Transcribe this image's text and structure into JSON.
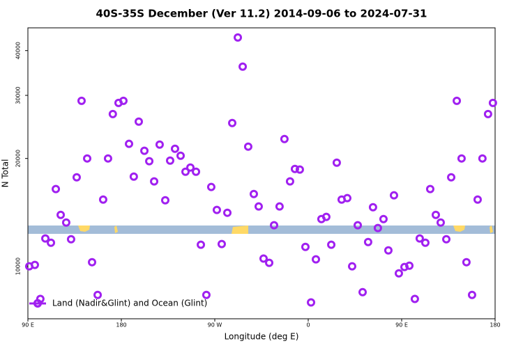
{
  "chart_data": {
    "type": "scatter",
    "title": "40S-35S December (Ver 11.2)   2014-09-06 to 2024-07-31",
    "xlabel": "Longitude (deg E)",
    "ylabel": "N Total",
    "log_y": true,
    "xlim": [
      90,
      540
    ],
    "ylim": [
      7140,
      46300
    ],
    "xticks": [
      {
        "value": 90,
        "label": "90 E"
      },
      180,
      {
        "value": 270,
        "label": "90 W"
      },
      {
        "value": 360,
        "label": "0"
      },
      {
        "value": 450,
        "label": "90 E"
      },
      {
        "value": 540,
        "label": "180"
      }
    ],
    "yticks": [
      10000,
      20000,
      30000,
      40000
    ],
    "legend": "bottom-left",
    "x": [
      91.3,
      96.7,
      99.4,
      102,
      106.8,
      112.2,
      116.9,
      121.6,
      126.9,
      131.6,
      137,
      141.7,
      147.1,
      151.8,
      157.2,
      162.5,
      167.2,
      171.8,
      177.3,
      182,
      187.4,
      192,
      196.8,
      202.2,
      206.9,
      211.6,
      216.9,
      222.3,
      227,
      231.7,
      237.1,
      241.8,
      246.5,
      251.9,
      256.6,
      261.9,
      266.6,
      272,
      276.7,
      282.1,
      286.8,
      292.2,
      296.9,
      302.2,
      307.6,
      312.3,
      317,
      322.4,
      327.1,
      332.4,
      337.1,
      342.5,
      347.2,
      351.9,
      357.3,
      362.7,
      367.4,
      372.7,
      377.4,
      382.2,
      387.5,
      392.2,
      397.6,
      402.3,
      407.7,
      412.4,
      417.7,
      422.4,
      427.1,
      432.5,
      437.2,
      442.6,
      447.3,
      452.7,
      457.4,
      462.7,
      467.4,
      472.8,
      477.5,
      482.9,
      487.6,
      493,
      497.7,
      503.1,
      507.7,
      512.4,
      517.8,
      523.2,
      527.8,
      533.2,
      537.9
    ],
    "series": [
      {
        "name": "Land (Nadir&Glint) and Ocean (Glint)",
        "color": "#a020f0",
        "values": [
          10000,
          10090,
          7890,
          8110,
          11960,
          11640,
          16430,
          13920,
          13250,
          11900,
          17720,
          28970,
          20000,
          10270,
          8320,
          15360,
          20000,
          26610,
          28580,
          28970,
          21970,
          17800,
          25340,
          21010,
          19650,
          17260,
          21870,
          15290,
          19730,
          21290,
          20360,
          18370,
          18870,
          18370,
          11490,
          8320,
          16650,
          14370,
          11540,
          14110,
          25120,
          43520,
          36080,
          21580,
          15920,
          14690,
          10510,
          10230,
          13020,
          14690,
          22660,
          17260,
          18700,
          18620,
          11330,
          7930,
          10460,
          13550,
          13740,
          11490,
          19470,
          15360,
          15500,
          10000,
          13020,
          8470,
          11690,
          14620,
          12790,
          13550,
          11080,
          15780,
          9560,
          9960,
          10040,
          8110,
          11960,
          11640,
          16430,
          13920,
          13250,
          11900,
          17720,
          28970,
          20000,
          10270,
          8320,
          15360,
          20000,
          26610,
          28580
        ]
      }
    ]
  }
}
